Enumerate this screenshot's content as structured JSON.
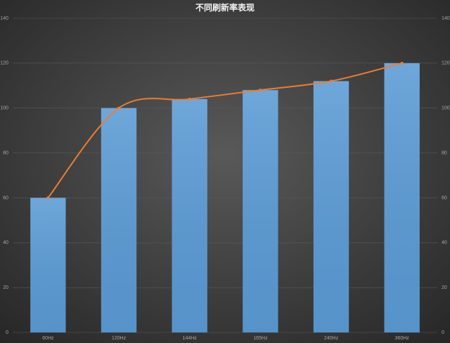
{
  "chart_data": {
    "type": "bar",
    "title": "不同刷新率表现",
    "categories": [
      "60Hz",
      "120Hz",
      "144Hz",
      "165Hz",
      "240Hz",
      "360Hz"
    ],
    "series": [
      {
        "type": "bar",
        "color": "#5b9bd5",
        "values": [
          60,
          100,
          104,
          108,
          112,
          120
        ]
      },
      {
        "type": "line",
        "color": "#ed7d31",
        "axis": "y2",
        "smooth": true,
        "values": [
          60,
          100,
          104,
          108,
          112,
          120
        ]
      }
    ],
    "ylim": [
      0,
      140
    ],
    "yticks": [
      0,
      20,
      40,
      60,
      80,
      100,
      120,
      140
    ],
    "y2lim": [
      0,
      140
    ],
    "y2ticks": [
      0,
      20,
      40,
      60,
      80,
      100,
      120,
      140
    ],
    "grid": true
  }
}
